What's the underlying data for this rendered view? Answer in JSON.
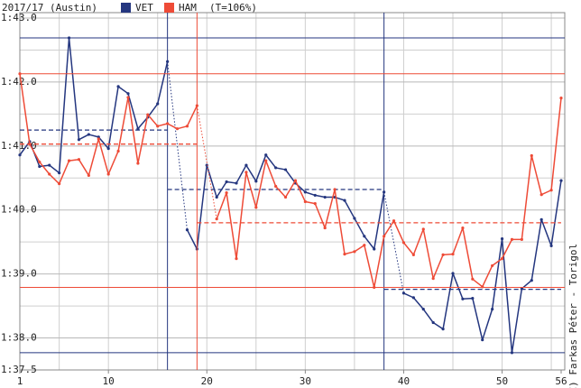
{
  "chart_data": {
    "type": "line",
    "title": "2017/17 (Austin)",
    "subtitle": "(T=106%)",
    "credit": "(C) Farkas Péter - Torigol",
    "xlim": [
      1,
      56
    ],
    "xticks": [
      1,
      10,
      20,
      30,
      40,
      50,
      56
    ],
    "x_grid": [
      5,
      10,
      15,
      20,
      25,
      30,
      35,
      40,
      45,
      50,
      55
    ],
    "ylim": [
      97.5,
      103
    ],
    "yticks": [
      {
        "value": 103,
        "label": "1:43.0"
      },
      {
        "value": 102,
        "label": "1:42.0"
      },
      {
        "value": 101,
        "label": "1:41.0"
      },
      {
        "value": 100,
        "label": "1:40.0"
      },
      {
        "value": 99,
        "label": "1:39.0"
      },
      {
        "value": 98,
        "label": "1:38.0"
      },
      {
        "value": 97.5,
        "label": "1:37.5"
      }
    ],
    "y_grid": [
      102.5,
      101.5,
      100.5,
      99.5,
      98.5
    ],
    "grid": true,
    "series": [
      {
        "name": "VET",
        "color": "#24367f",
        "pit_laps": [
          16,
          38
        ],
        "stint_averages": [
          101.25,
          100.32,
          98.76
        ],
        "values": [
          100.86,
          101.07,
          100.68,
          100.7,
          100.58,
          102.69,
          101.1,
          101.18,
          101.14,
          100.96,
          101.93,
          101.82,
          101.27,
          101.45,
          101.66,
          102.32,
          null,
          99.69,
          99.39,
          100.7,
          100.2,
          100.44,
          100.42,
          100.7,
          100.45,
          100.86,
          100.66,
          100.63,
          100.42,
          100.28,
          100.23,
          100.2,
          100.2,
          100.15,
          99.87,
          99.59,
          99.39,
          100.28,
          null,
          98.7,
          98.63,
          98.45,
          98.24,
          98.14,
          99.01,
          98.61,
          98.62,
          97.97,
          98.45,
          99.55,
          97.77,
          98.77,
          98.9,
          99.85,
          99.44,
          100.46
        ]
      },
      {
        "name": "HAM",
        "color": "#ee4b37",
        "pit_laps": [
          19
        ],
        "stint_averages": [
          101.03,
          99.8
        ],
        "values": [
          102.13,
          101.03,
          100.75,
          100.56,
          100.41,
          100.77,
          100.79,
          100.54,
          101.11,
          100.56,
          100.92,
          101.76,
          100.73,
          101.49,
          101.31,
          101.35,
          101.27,
          101.31,
          101.63,
          null,
          99.86,
          100.27,
          99.24,
          100.59,
          100.04,
          100.77,
          100.37,
          100.2,
          100.46,
          100.13,
          100.1,
          99.72,
          100.32,
          99.31,
          99.35,
          99.45,
          98.79,
          99.59,
          99.83,
          99.49,
          99.3,
          99.7,
          98.93,
          99.3,
          99.31,
          99.72,
          98.92,
          98.8,
          99.13,
          99.24,
          99.54,
          99.54,
          100.85,
          100.24,
          100.31,
          101.75
        ]
      }
    ]
  }
}
